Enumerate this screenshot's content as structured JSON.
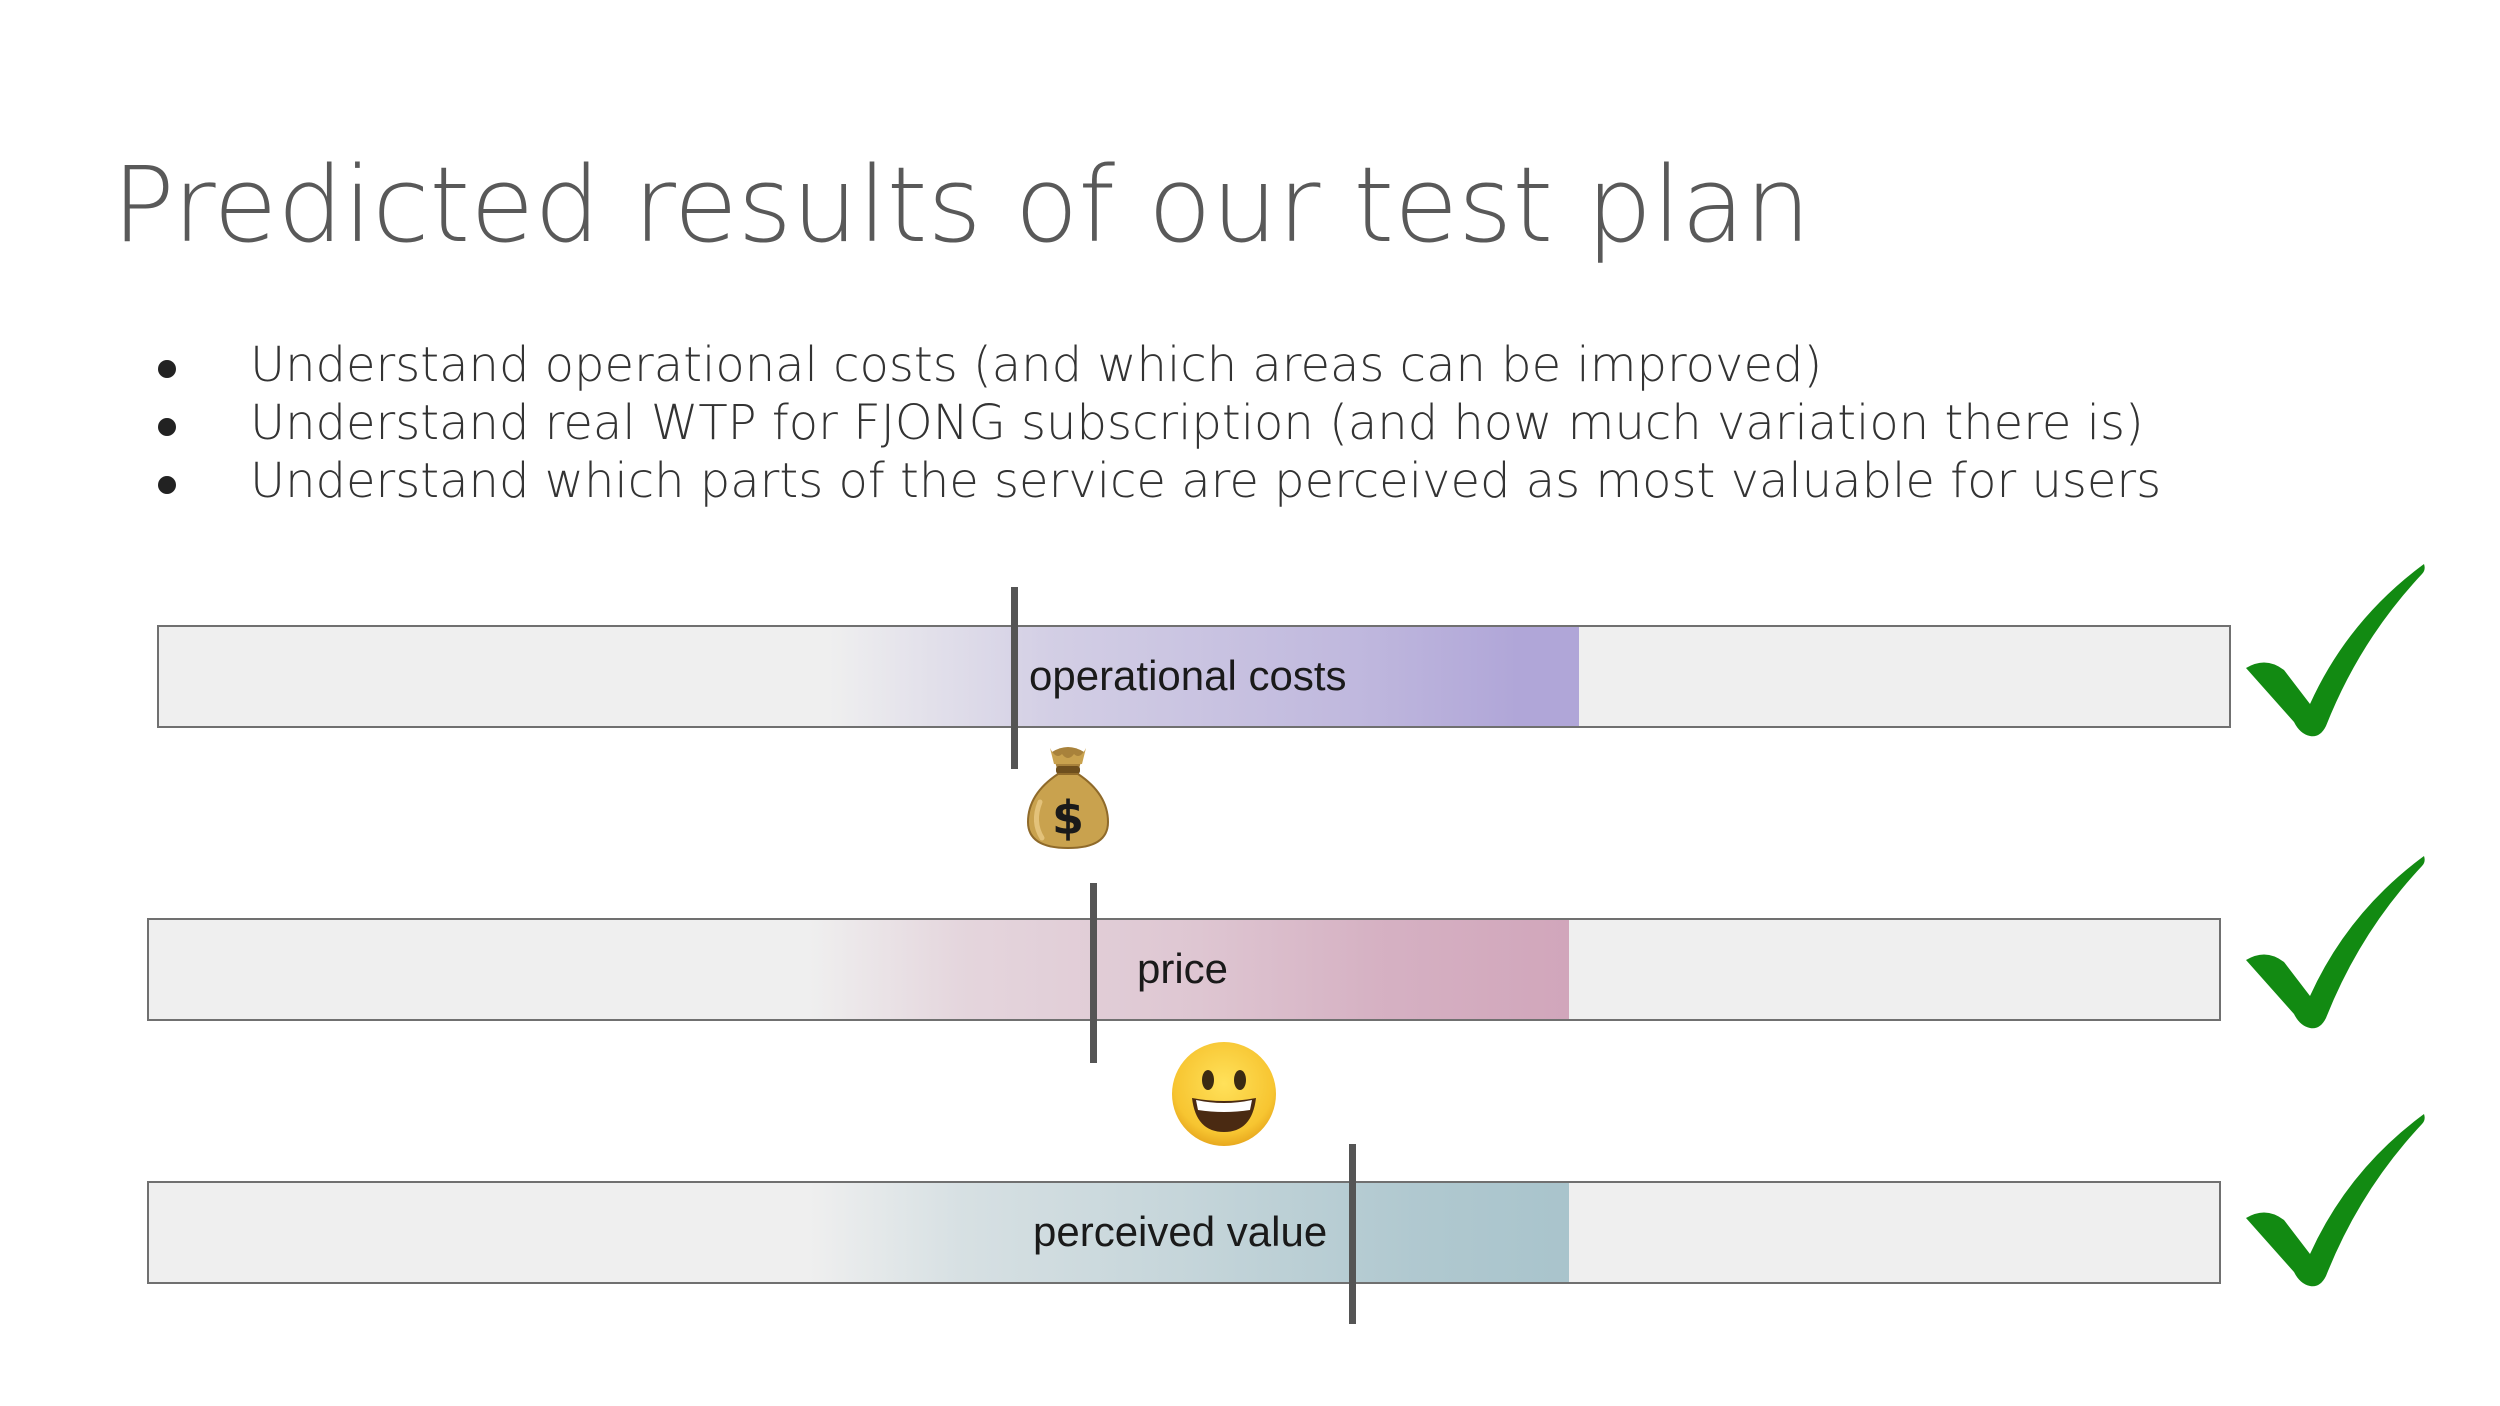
{
  "slide": {
    "title": "Predicted results of our test plan",
    "bullets": [
      "Understand operational costs (and which areas can be improved)",
      "Understand real WTP for FJONG subscription (and how much variation there is)",
      "Understand which parts of the service are perceived as most valuable for users"
    ]
  },
  "bars": [
    {
      "label": "operational costs",
      "color": "#b0a6d8",
      "icon": "money-bag-icon"
    },
    {
      "label": "price",
      "color": "#d1a6bb",
      "icon": "grinning-face-icon"
    },
    {
      "label": "perceived value",
      "color": "#a9c4cc",
      "icon": "checkmark-icon"
    }
  ],
  "colors": {
    "check": "#128a12",
    "bar_background": "#efefef",
    "marker": "#555555"
  }
}
